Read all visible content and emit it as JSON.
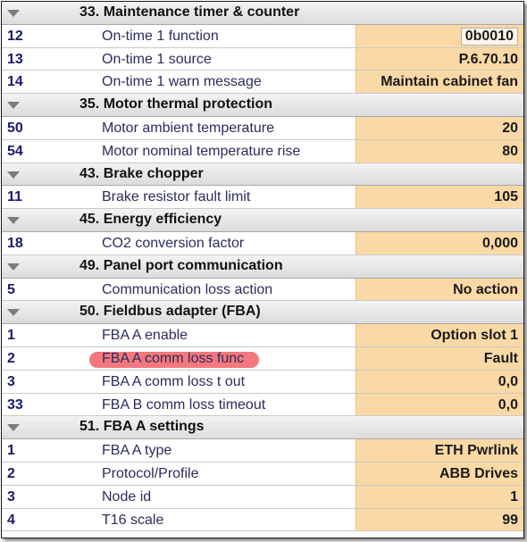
{
  "highlight_color": "#f16066",
  "groups": [
    {
      "title": "33. Maintenance timer & counter",
      "params": [
        {
          "id": "12",
          "name": "On-time 1 function",
          "value": "0b0010"
        },
        {
          "id": "13",
          "name": "On-time 1 source",
          "value": "P.6.70.10"
        },
        {
          "id": "14",
          "name": "On-time 1 warn message",
          "value": "Maintain cabinet fan"
        }
      ]
    },
    {
      "title": "35. Motor thermal protection",
      "params": [
        {
          "id": "50",
          "name": "Motor ambient temperature",
          "value": "20"
        },
        {
          "id": "54",
          "name": "Motor nominal temperature rise",
          "value": "80"
        }
      ]
    },
    {
      "title": "43. Brake chopper",
      "params": [
        {
          "id": "11",
          "name": "Brake resistor fault limit",
          "value": "105"
        }
      ]
    },
    {
      "title": "45. Energy efficiency",
      "params": [
        {
          "id": "18",
          "name": "CO2 conversion factor",
          "value": "0,000"
        }
      ]
    },
    {
      "title": "49. Panel port communication",
      "params": [
        {
          "id": "5",
          "name": "Communication loss action",
          "value": "No action"
        }
      ]
    },
    {
      "title": "50. Fieldbus adapter (FBA)",
      "params": [
        {
          "id": "1",
          "name": "FBA A enable",
          "value": "Option slot 1"
        },
        {
          "id": "2",
          "name": "FBA A comm loss func",
          "value": "Fault"
        },
        {
          "id": "3",
          "name": "FBA A comm loss t out",
          "value": "0,0"
        },
        {
          "id": "33",
          "name": "FBA B comm loss timeout",
          "value": "0,0"
        }
      ]
    },
    {
      "title": "51. FBA A settings",
      "params": [
        {
          "id": "1",
          "name": "FBA A type",
          "value": "ETH Pwrlink"
        },
        {
          "id": "2",
          "name": "Protocol/Profile",
          "value": "ABB Drives"
        },
        {
          "id": "3",
          "name": "Node id",
          "value": "1"
        },
        {
          "id": "4",
          "name": "T16 scale",
          "value": "99"
        }
      ]
    }
  ]
}
